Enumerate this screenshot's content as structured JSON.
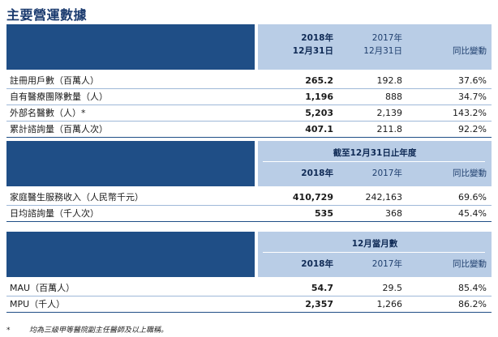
{
  "title": "主要營運數據",
  "table1": {
    "col_2018_line1": "2018年",
    "col_2018_line2": "12月31日",
    "col_2017_line1": "2017年",
    "col_2017_line2": "12月31日",
    "col_change": "同比變動",
    "rows": [
      {
        "label": "註冊用戶數（百萬人）",
        "v2018": "265.2",
        "v2017": "192.8",
        "change": "37.6%"
      },
      {
        "label": "自有醫療團隊數量（人）",
        "v2018": "1,196",
        "v2017": "888",
        "change": "34.7%"
      },
      {
        "label": "外部名醫數（人）*",
        "v2018": "5,203",
        "v2017": "2,139",
        "change": "143.2%"
      },
      {
        "label": "累計諮詢量（百萬人次）",
        "v2018": "407.1",
        "v2017": "211.8",
        "change": "92.2%"
      }
    ]
  },
  "table2": {
    "group_header": "截至12月31日止年度",
    "col_2018": "2018年",
    "col_2017": "2017年",
    "col_change": "同比變動",
    "rows": [
      {
        "label": "家庭醫生服務收入（人民幣千元）",
        "v2018": "410,729",
        "v2017": "242,163",
        "change": "69.6%"
      },
      {
        "label": "日均諮詢量（千人次）",
        "v2018": "535",
        "v2017": "368",
        "change": "45.4%"
      }
    ]
  },
  "table3": {
    "group_header": "12月當月數",
    "col_2018": "2018年",
    "col_2017": "2017年",
    "col_change": "同比變動",
    "rows": [
      {
        "label": "MAU（百萬人）",
        "v2018": "54.7",
        "v2017": "29.5",
        "change": "85.4%"
      },
      {
        "label": "MPU（千人）",
        "v2018": "2,357",
        "v2017": "1,266",
        "change": "86.2%"
      }
    ]
  },
  "footnote": {
    "marker": "*",
    "text": "均為三級甲等醫院副主任醫師及以上職稱。"
  }
}
